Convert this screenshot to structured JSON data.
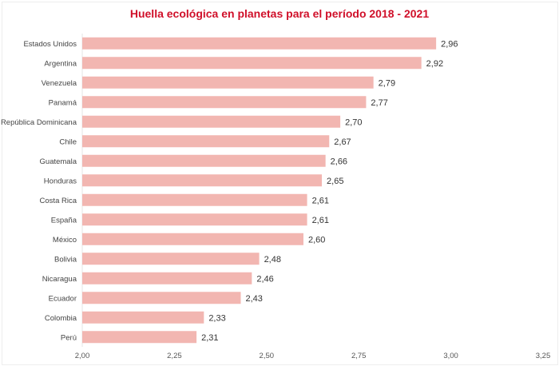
{
  "chart_data": {
    "type": "bar",
    "orientation": "horizontal",
    "title": "Huella ecológica en planetas para el período 2018 - 2021",
    "xlabel": "",
    "ylabel": "",
    "categories": [
      "Estados Unidos",
      "Argentina",
      "Venezuela",
      "Panamá",
      "República Dominicana",
      "Chile",
      "Guatemala",
      "Honduras",
      "Costa Rica",
      "España",
      "México",
      "Bolivia",
      "Nicaragua",
      "Ecuador",
      "Colombia",
      "Perú"
    ],
    "values": [
      2.96,
      2.92,
      2.79,
      2.77,
      2.7,
      2.67,
      2.66,
      2.65,
      2.61,
      2.61,
      2.6,
      2.48,
      2.46,
      2.43,
      2.33,
      2.31
    ],
    "value_labels": [
      "2,96",
      "2,92",
      "2,79",
      "2,77",
      "2,70",
      "2,67",
      "2,66",
      "2,65",
      "2,61",
      "2,61",
      "2,60",
      "2,48",
      "2,46",
      "2,43",
      "2,33",
      "2,31"
    ],
    "xlim": [
      2.0,
      3.25
    ],
    "xticks": [
      2.0,
      2.25,
      2.5,
      2.75,
      3.0,
      3.25
    ],
    "xtick_labels": [
      "2,00",
      "2,25",
      "2,50",
      "2,75",
      "3,00",
      "3,25"
    ],
    "grid": false,
    "bar_color": "#f2b6b1",
    "title_color": "#d0102a"
  }
}
